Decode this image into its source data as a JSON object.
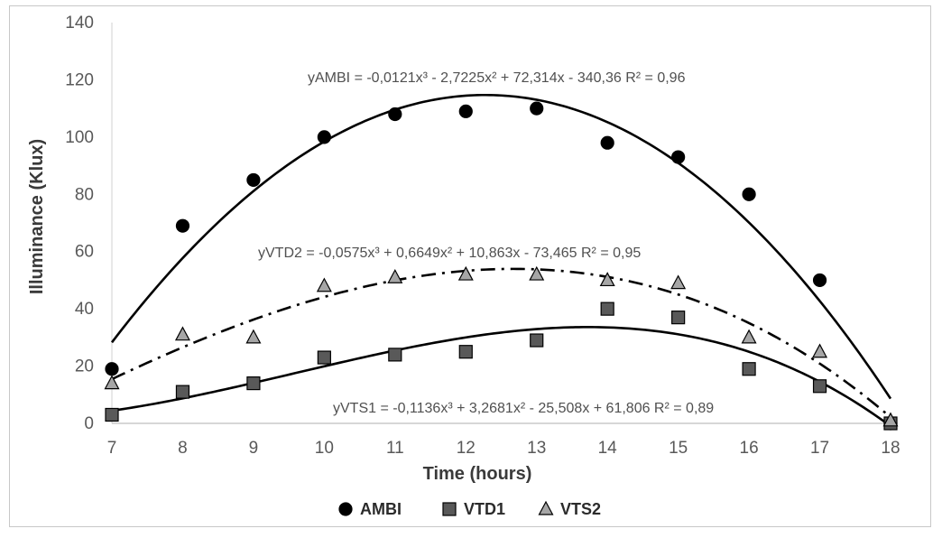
{
  "chart_data": {
    "type": "scatter",
    "xlabel": "Time (hours)",
    "ylabel": "Illuminance (Klux)",
    "xlim": [
      7,
      18
    ],
    "ylim": [
      0,
      140
    ],
    "x_ticks": [
      "7",
      "8",
      "9",
      "10",
      "11",
      "12",
      "13",
      "14",
      "15",
      "16",
      "17",
      "18"
    ],
    "y_ticks": [
      "0",
      "20",
      "40",
      "60",
      "80",
      "100",
      "120",
      "140"
    ],
    "grid": false,
    "legend_position": "bottom",
    "x": [
      7,
      8,
      9,
      10,
      11,
      12,
      13,
      14,
      15,
      16,
      17,
      18
    ],
    "series": [
      {
        "name": "AMBI",
        "marker": "circle",
        "color": "#000000",
        "values": [
          19,
          69,
          85,
          100,
          108,
          109,
          110,
          98,
          93,
          80,
          50,
          0
        ],
        "trend": {
          "coeffs": [
            -0.0121,
            -2.7225,
            72.314,
            -340.36
          ],
          "style": "solid"
        },
        "equation": "yAMBI = -0,0121x³ - 2,7225x² + 72,314x - 340,36  R² = 0,96"
      },
      {
        "name": "VTD1",
        "marker": "square",
        "color": "#595959",
        "values": [
          3,
          11,
          14,
          23,
          24,
          25,
          29,
          40,
          37,
          19,
          13,
          0
        ],
        "trend": {
          "coeffs": [
            -0.1136,
            3.2681,
            -25.508,
            61.806
          ],
          "style": "solid"
        },
        "equation": "yVTS1 = -0,1136x³ + 3,2681x² - 25,508x + 61,806  R² = 0,89"
      },
      {
        "name": "VTS2",
        "marker": "triangle",
        "color": "#a6a6a6",
        "values": [
          14,
          31,
          30,
          48,
          51,
          52,
          52,
          50,
          49,
          30,
          25,
          1
        ],
        "trend": {
          "coeffs": [
            -0.0575,
            0.6649,
            10.863,
            -73.465
          ],
          "style": "dashdot"
        },
        "equation": "yVTD2 = -0,0575x³ + 0,6649x² + 10,863x - 73,465 R² = 0,95"
      }
    ]
  }
}
